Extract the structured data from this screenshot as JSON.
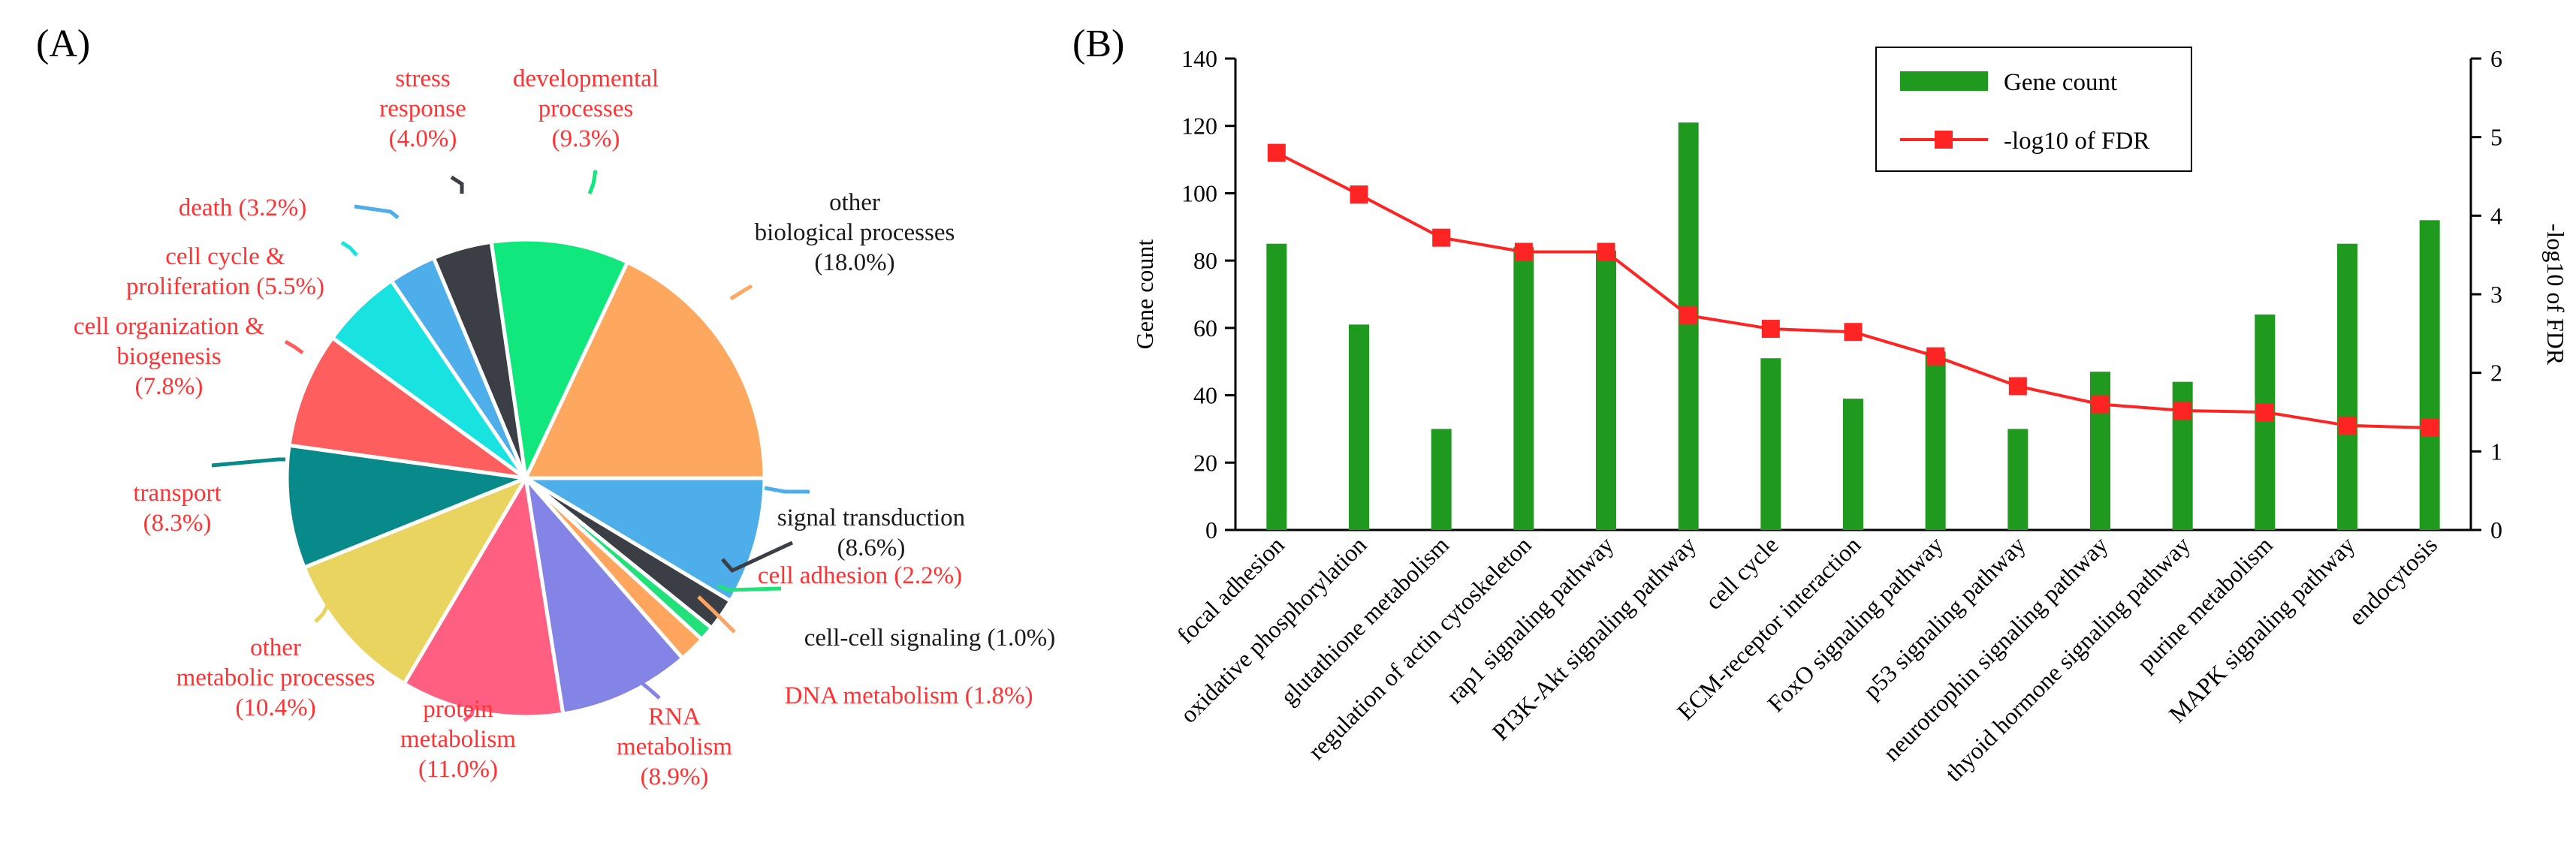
{
  "panel_a_label": "(A)",
  "panel_b_label": "(B)",
  "chart_data": [
    {
      "type": "pie",
      "title": "",
      "slices": [
        {
          "lines": [
            "signal transduction",
            "(8.6%)"
          ],
          "value": 8.6,
          "color": "#4eaee9",
          "text_color": "#1a1a1a",
          "display": "signal transduction (8.6%)"
        },
        {
          "lines": [
            "cell adhesion (2.2%)"
          ],
          "value": 2.2,
          "color": "#3b3e44",
          "text_color": "#ff3333",
          "display": "cell adhesion (2.2%)"
        },
        {
          "lines": [
            "cell-cell signaling (1.0%)"
          ],
          "value": 1.0,
          "color": "#22e07a",
          "text_color": "#1a1a1a",
          "display": "cell-cell signaling (1.0%)"
        },
        {
          "lines": [
            "DNA metabolism (1.8%)"
          ],
          "value": 1.8,
          "color": "#ffa55e",
          "text_color": "#ff3333",
          "display": "DNA metabolism (1.8%)"
        },
        {
          "lines": [
            "RNA",
            "metabolism",
            "(8.9%)"
          ],
          "value": 8.9,
          "color": "#8484e6",
          "text_color": "#ff3333",
          "display": "RNA metabolism (8.9%)"
        },
        {
          "lines": [
            "protein",
            "metabolism",
            "(11.0%)"
          ],
          "value": 11.0,
          "color": "#ff5f81",
          "text_color": "#ff3333",
          "display": "protein metabolism (11.0%)"
        },
        {
          "lines": [
            "other",
            "metabolic processes",
            "(10.4%)"
          ],
          "value": 10.4,
          "color": "#e8d45e",
          "text_color": "#ff3333",
          "display": "other metabolic processes (10.4%)"
        },
        {
          "lines": [
            "transport",
            "(8.3%)"
          ],
          "value": 8.3,
          "color": "#088a8a",
          "text_color": "#ff3333",
          "display": "transport (8.3%)"
        },
        {
          "lines": [
            "cell organization &",
            "biogenesis",
            "(7.8%)"
          ],
          "value": 7.8,
          "color": "#fe5e5e",
          "text_color": "#ff3333",
          "display": "cell organization & biogenesis (7.8%)"
        },
        {
          "lines": [
            "cell cycle &",
            "proliferation (5.5%)"
          ],
          "value": 5.5,
          "color": "#19e3e0",
          "text_color": "#ff3333",
          "display": "cell cycle & proliferation (5.5%)"
        },
        {
          "lines": [
            "death (3.2%)"
          ],
          "value": 3.2,
          "color": "#4eaee9",
          "text_color": "#ff3333",
          "display": "death (3.2%)"
        },
        {
          "lines": [
            "stress",
            "response",
            "(4.0%)"
          ],
          "value": 4.0,
          "color": "#3b3e44",
          "text_color": "#ff3333",
          "display": "stress response (4.0%)"
        },
        {
          "lines": [
            "developmental",
            "processes",
            "(9.3%)"
          ],
          "value": 9.3,
          "color": "#10e87d",
          "text_color": "#ff3333",
          "display": "developmental processes (9.3%)"
        },
        {
          "lines": [
            "other",
            "biological processes",
            "(18.0%)"
          ],
          "value": 18.0,
          "color": "#fea85f",
          "text_color": "#1a1a1a",
          "display": "other biological processes (18.0%)"
        }
      ]
    },
    {
      "type": "bar",
      "title": "",
      "categories": [
        "focal adhesion",
        "oxidative phosphorylation",
        "glutathione metabolism",
        "regulation of actin cytoskeleton",
        "rap1 signaling pathway",
        "PI3K-Akt signaling pathway",
        "cell cycle",
        "ECM-receptor interaction",
        "FoxO signaling pathway",
        "p53 signaling pathway",
        "neurotrophin signaling pathway",
        "thyoid hormone signaling pathway",
        "purine metabolism",
        "MAPK signaling pathway",
        "endocytosis"
      ],
      "series": [
        {
          "name": "Gene count",
          "type": "bar",
          "axis": "left",
          "color": "#1f9a1f",
          "values": [
            85,
            61,
            30,
            84,
            83,
            121,
            51,
            39,
            53,
            30,
            47,
            44,
            64,
            85,
            92
          ]
        },
        {
          "name": "-log10 of FDR",
          "type": "line",
          "axis": "right",
          "color": "#ff2424",
          "values": [
            4.8,
            4.27,
            3.72,
            3.54,
            3.54,
            2.73,
            2.56,
            2.52,
            2.21,
            1.83,
            1.6,
            1.52,
            1.5,
            1.33,
            1.3
          ]
        }
      ],
      "ylabel": "Gene count",
      "ylabel_right": "-log10 of FDR",
      "ylim": [
        0,
        140
      ],
      "ylim_right": [
        0,
        6
      ],
      "yticks": [
        "0",
        "20",
        "40",
        "60",
        "80",
        "100",
        "120",
        "140"
      ],
      "yticks_right": [
        "0",
        "1",
        "2",
        "3",
        "4",
        "5",
        "6"
      ],
      "legend_position": "top-center"
    }
  ]
}
